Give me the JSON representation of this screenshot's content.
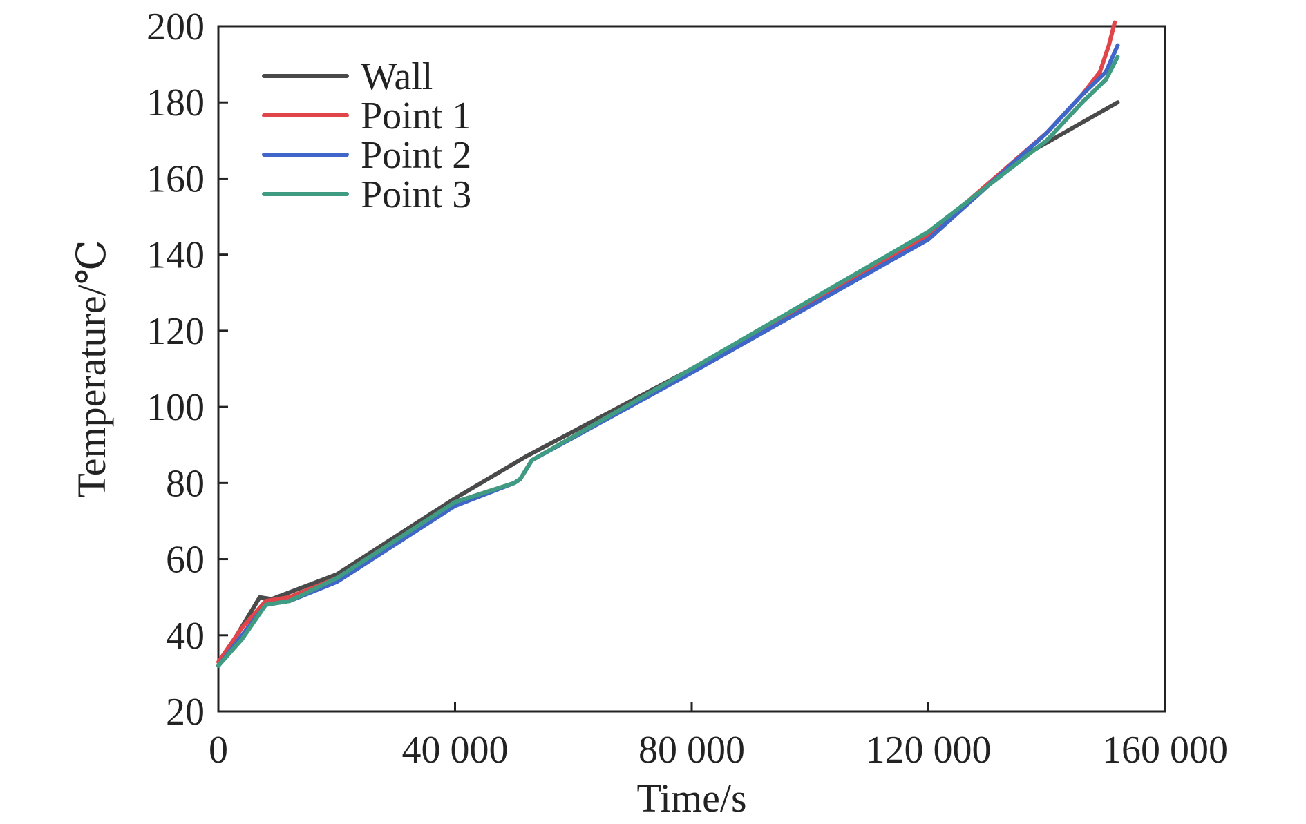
{
  "chart_data": {
    "type": "line",
    "xlabel": "Time/s",
    "ylabel": "Temperature/℃",
    "xlim": [
      0,
      160000
    ],
    "ylim": [
      20,
      200
    ],
    "xticks": [
      0,
      40000,
      80000,
      120000,
      160000
    ],
    "xtick_labels": [
      "0",
      "40 000",
      "80 000",
      "120 000",
      "160 000"
    ],
    "yticks": [
      20,
      40,
      60,
      80,
      100,
      120,
      140,
      160,
      180,
      200
    ],
    "ytick_labels": [
      "20",
      "40",
      "60",
      "80",
      "100",
      "120",
      "140",
      "160",
      "180",
      "200"
    ],
    "grid": false,
    "legend_position": "top-left",
    "series": [
      {
        "name": "Wall",
        "color": "#4a4a4a",
        "x": [
          0,
          7000,
          9000,
          20000,
          40000,
          52000,
          80000,
          120000,
          135000,
          152000
        ],
        "y": [
          32,
          50,
          49.5,
          56,
          76,
          87,
          110,
          145,
          165,
          180
        ]
      },
      {
        "name": "Point 1",
        "color": "#e0454a",
        "x": [
          0,
          4000,
          8000,
          12000,
          20000,
          40000,
          50000,
          51000,
          53000,
          80000,
          120000,
          140000,
          146000,
          149000,
          150500,
          151500
        ],
        "y": [
          33,
          42,
          49,
          50,
          55,
          75,
          80,
          81,
          86,
          110,
          145,
          172,
          182,
          188,
          195,
          201
        ]
      },
      {
        "name": "Point 2",
        "color": "#3f66c8",
        "x": [
          0,
          4000,
          8000,
          12000,
          20000,
          40000,
          50000,
          51000,
          53000,
          80000,
          120000,
          140000,
          146000,
          150000,
          152000
        ],
        "y": [
          32,
          40,
          48,
          49,
          54,
          74,
          80,
          81,
          86,
          109,
          144,
          172,
          182,
          188,
          195
        ]
      },
      {
        "name": "Point 3",
        "color": "#3f9c82",
        "x": [
          0,
          4000,
          8000,
          12000,
          20000,
          40000,
          50000,
          51000,
          53000,
          80000,
          120000,
          140000,
          146000,
          150000,
          152000
        ],
        "y": [
          32,
          39,
          48,
          49,
          55,
          75,
          80,
          81,
          86,
          110,
          146,
          170,
          180,
          186,
          192
        ]
      }
    ]
  }
}
